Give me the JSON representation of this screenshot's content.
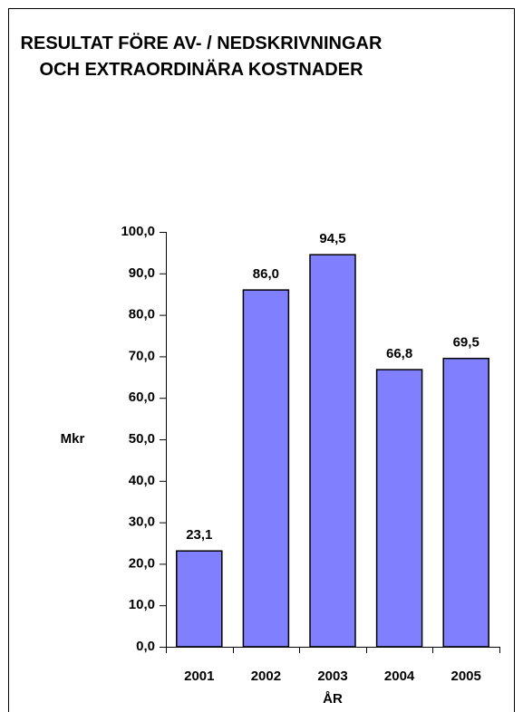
{
  "chart_data": {
    "type": "bar",
    "title": "RESULTAT FÖRE AV- / NEDSKRIVNINGAR OCH EXTRAORDINÄRA KOSTNADER",
    "y_label": "Mkr",
    "x_label": "ÅR",
    "categories": [
      "2001",
      "2002",
      "2003",
      "2004",
      "2005"
    ],
    "values": [
      23.1,
      86.0,
      94.5,
      66.8,
      69.5
    ],
    "value_labels": [
      "23,1",
      "86,0",
      "94,5",
      "66,8",
      "69,5"
    ],
    "color": "#8080ff",
    "ylim": [
      0,
      100
    ],
    "yticks": [
      {
        "value": 0,
        "label": "0,0"
      },
      {
        "value": 10,
        "label": "10,0"
      },
      {
        "value": 20,
        "label": "20,0"
      },
      {
        "value": 30,
        "label": "30,0"
      },
      {
        "value": 40,
        "label": "40,0"
      },
      {
        "value": 50,
        "label": "50,0"
      },
      {
        "value": 60,
        "label": "60,0"
      },
      {
        "value": 70,
        "label": "70,0"
      },
      {
        "value": 80,
        "label": "80,0"
      },
      {
        "value": 90,
        "label": "90,0"
      },
      {
        "value": 100,
        "label": "100,0"
      }
    ],
    "grid": false
  }
}
